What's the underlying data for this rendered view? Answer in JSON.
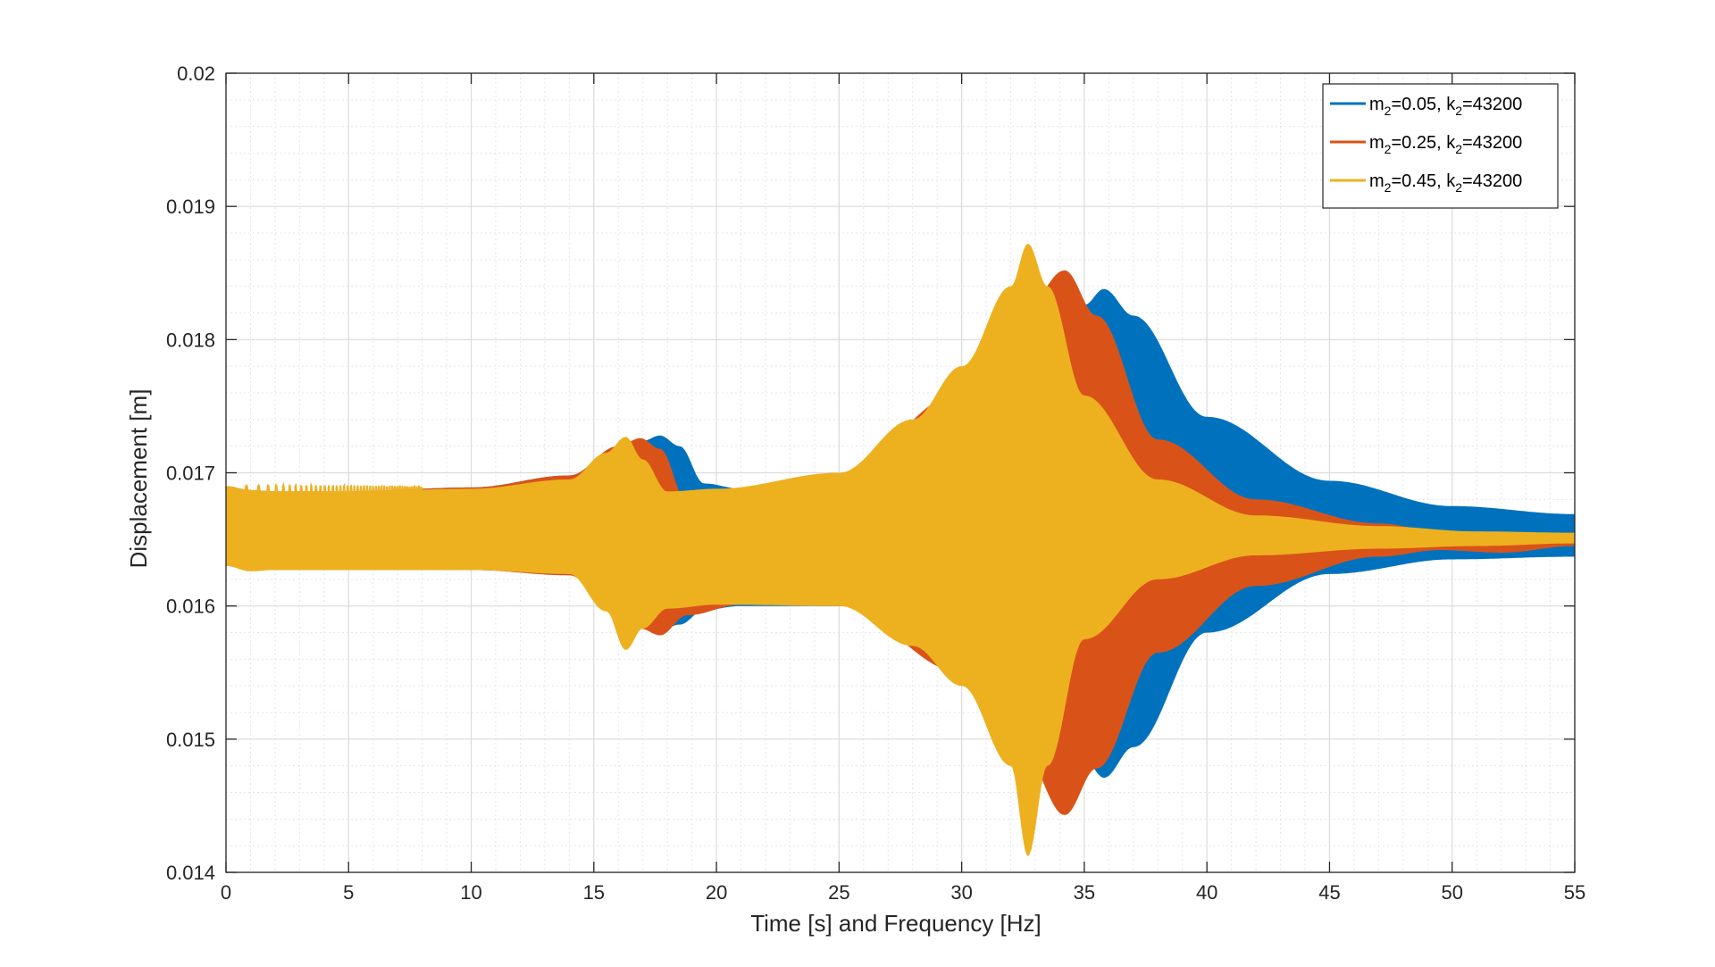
{
  "chart_data": {
    "type": "area",
    "title": "",
    "xlabel": "Time [s] and Frequency [Hz]",
    "ylabel": "Displacement [m]",
    "xlim": [
      0,
      55
    ],
    "ylim": [
      0.014,
      0.02
    ],
    "x_ticks": [
      0,
      5,
      10,
      15,
      20,
      25,
      30,
      35,
      40,
      45,
      50,
      55
    ],
    "x_tick_labels": [
      "0",
      "5",
      "10",
      "15",
      "20",
      "25",
      "30",
      "35",
      "40",
      "45",
      "50",
      "55"
    ],
    "y_ticks": [
      0.014,
      0.015,
      0.016,
      0.017,
      0.018,
      0.019,
      0.02
    ],
    "y_tick_labels": [
      "0.014",
      "0.015",
      "0.016",
      "0.017",
      "0.018",
      "0.019",
      "0.02"
    ],
    "grid": true,
    "minor_grid": true,
    "legend_position": "top-right",
    "series": [
      {
        "name": "m2=0.05, k2=43200",
        "legend": {
          "m": "m",
          "m_sub": "2",
          "m_val": "=0.05, k",
          "k_sub": "2",
          "k_val": "=43200"
        },
        "color": "#0072BD",
        "x": [
          0,
          1,
          2,
          5,
          10,
          14,
          16,
          17,
          17.7,
          18.5,
          19.5,
          21,
          25,
          30,
          33,
          35,
          35.8,
          37,
          40,
          45,
          50,
          55
        ],
        "upper": [
          0.0169,
          0.01687,
          0.01686,
          0.01686,
          0.01689,
          0.01698,
          0.0172,
          0.01724,
          0.01728,
          0.0172,
          0.01692,
          0.01688,
          0.017,
          0.0175,
          0.0179,
          0.01826,
          0.01838,
          0.01818,
          0.01742,
          0.01694,
          0.01675,
          0.01669
        ],
        "lower": [
          0.0163,
          0.01635,
          0.01628,
          0.01628,
          0.01627,
          0.01624,
          0.01595,
          0.0159,
          0.01582,
          0.01586,
          0.01597,
          0.016,
          0.016,
          0.0156,
          0.0152,
          0.01485,
          0.01471,
          0.01494,
          0.0158,
          0.01624,
          0.01635,
          0.01637
        ]
      },
      {
        "name": "m2=0.25, k2=43200",
        "legend": {
          "m": "m",
          "m_sub": "2",
          "m_val": "=0.25, k",
          "k_sub": "2",
          "k_val": "=43200"
        },
        "color": "#D95319",
        "x": [
          0,
          1,
          2,
          5,
          10,
          14,
          16,
          16.9,
          17.7,
          18.8,
          21,
          25,
          30,
          32.5,
          34.2,
          35.5,
          38,
          42,
          47,
          49.5,
          52,
          55
        ],
        "upper": [
          0.0169,
          0.01687,
          0.01686,
          0.01686,
          0.01689,
          0.01698,
          0.0172,
          0.01726,
          0.01718,
          0.01678,
          0.01685,
          0.017,
          0.0176,
          0.0182,
          0.01852,
          0.01818,
          0.01725,
          0.0168,
          0.01662,
          0.01656,
          0.01652,
          0.01655
        ],
        "lower": [
          0.0163,
          0.0163,
          0.01627,
          0.01627,
          0.01627,
          0.01623,
          0.01592,
          0.01583,
          0.01578,
          0.01593,
          0.01601,
          0.016,
          0.0155,
          0.0149,
          0.01443,
          0.01478,
          0.01565,
          0.01615,
          0.01637,
          0.01642,
          0.0164,
          0.01645
        ]
      },
      {
        "name": "m2=0.45, k2=43200",
        "legend": {
          "m": "m",
          "m_sub": "2",
          "m_val": "=0.45, k",
          "k_sub": "2",
          "k_val": "=43200"
        },
        "color": "#EDB120",
        "x": [
          0,
          1,
          2,
          5,
          10,
          14,
          15.5,
          16.3,
          17,
          18,
          20,
          25,
          28,
          30,
          32,
          32.7,
          33.5,
          35,
          38,
          42,
          47,
          51,
          55
        ],
        "upper": [
          0.0169,
          0.01687,
          0.01686,
          0.01686,
          0.01688,
          0.01695,
          0.01715,
          0.01727,
          0.0171,
          0.01686,
          0.01688,
          0.017,
          0.0174,
          0.0178,
          0.0184,
          0.01872,
          0.0184,
          0.01758,
          0.01695,
          0.01668,
          0.0166,
          0.01656,
          0.01655
        ],
        "lower": [
          0.0163,
          0.01626,
          0.01627,
          0.01627,
          0.01627,
          0.01624,
          0.01596,
          0.01567,
          0.01583,
          0.01598,
          0.01601,
          0.016,
          0.0157,
          0.0154,
          0.0148,
          0.01412,
          0.0148,
          0.01575,
          0.0162,
          0.01638,
          0.01643,
          0.01645,
          0.01647
        ]
      }
    ]
  }
}
